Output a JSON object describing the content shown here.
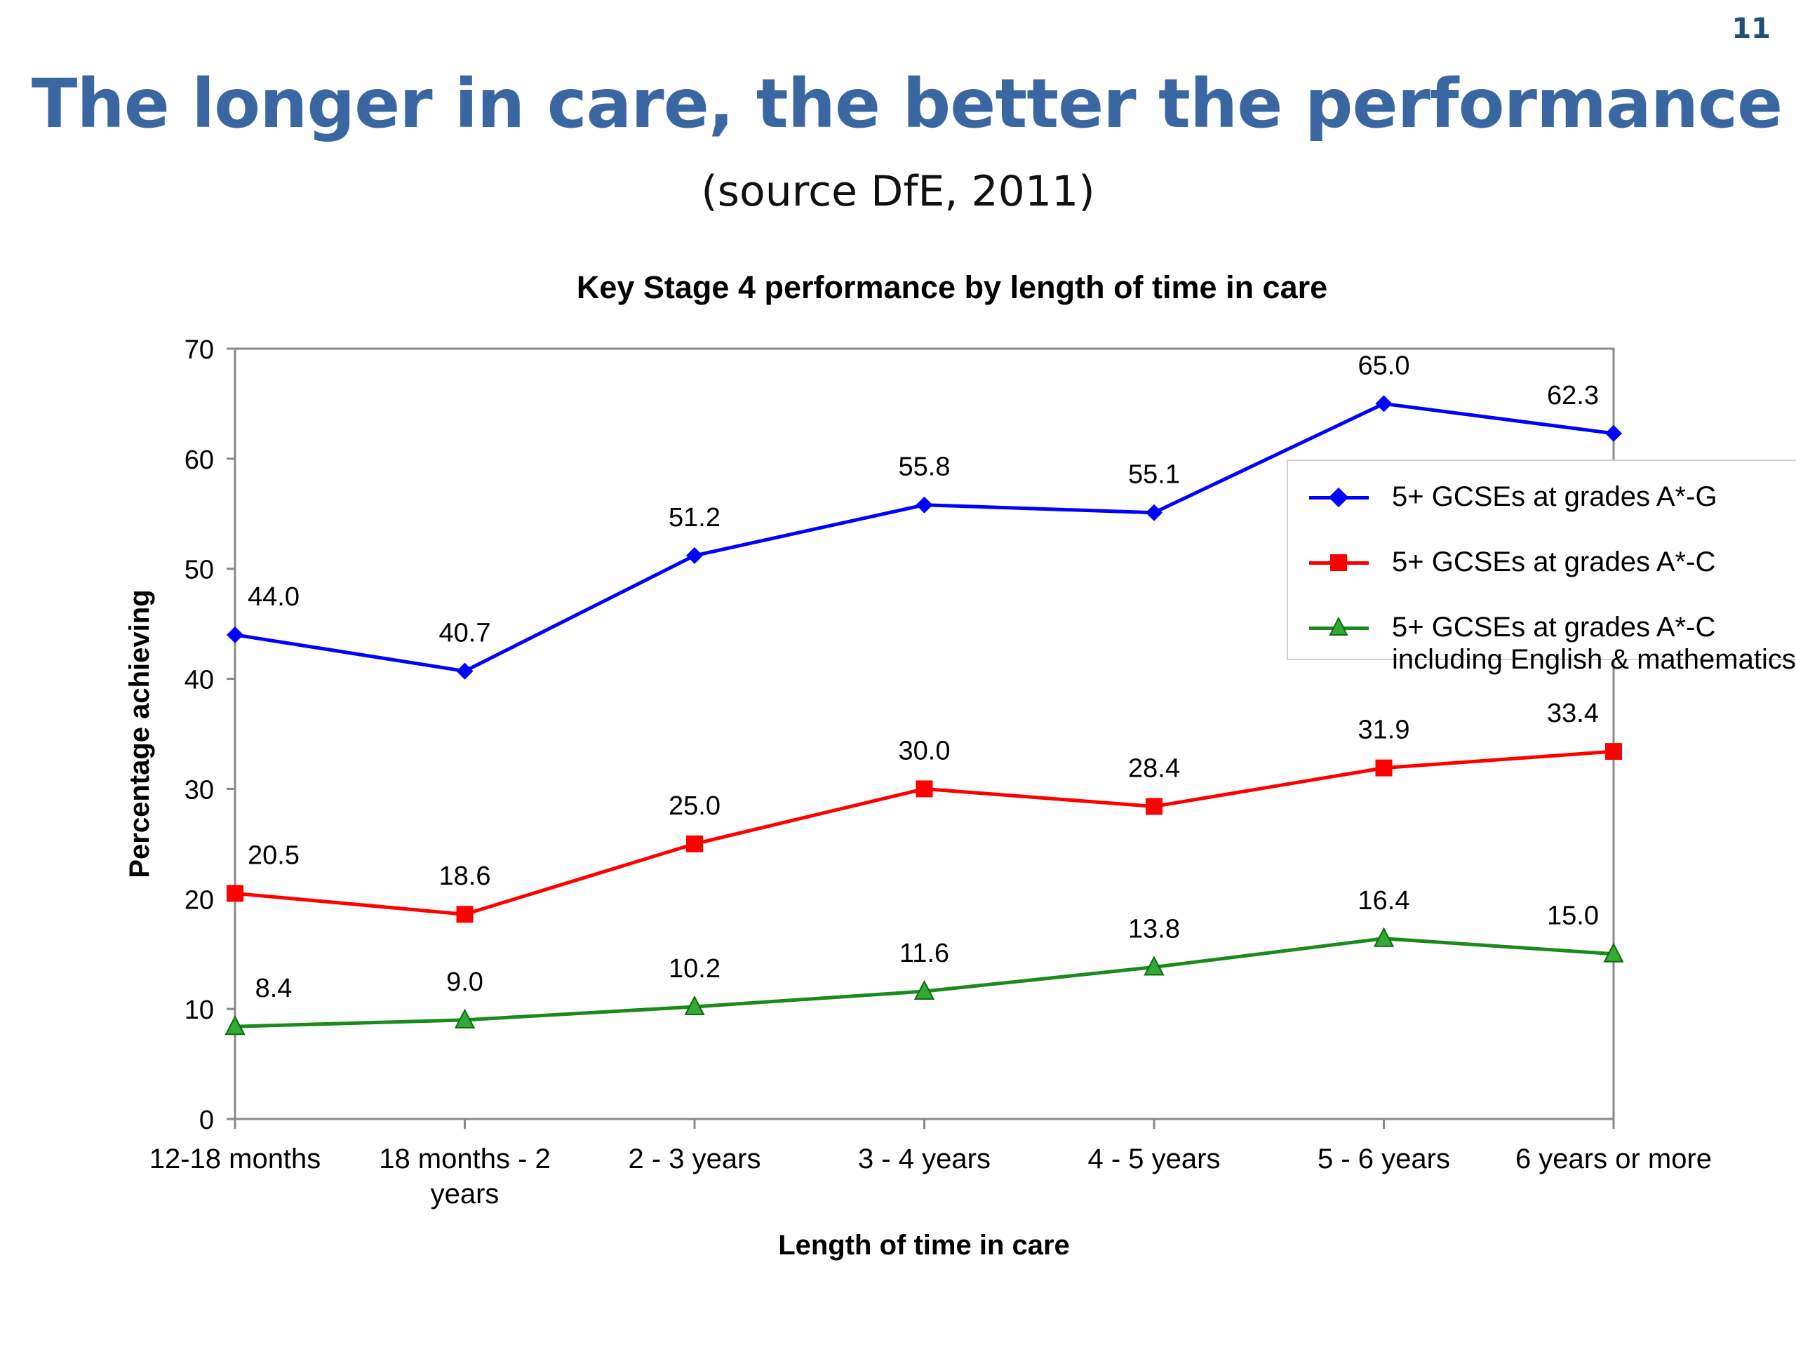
{
  "slide": {
    "number": "11",
    "title": "The longer in care, the better the performance",
    "subtitle": "(source DfE, 2011)"
  },
  "chart_data": {
    "type": "line",
    "title": "Key Stage 4 performance by length of time in care",
    "xlabel": "Length of time in care",
    "ylabel": "Percentage achieving",
    "ylim": [
      0,
      70
    ],
    "yticks": [
      0,
      10,
      20,
      30,
      40,
      50,
      60,
      70
    ],
    "grid": false,
    "legend_position": "right",
    "categories": [
      "12-18 months",
      "18 months - 2 years",
      "2 - 3 years",
      "3 - 4 years",
      "4 - 5 years",
      "5 - 6 years",
      "6 years or more"
    ],
    "series": [
      {
        "name": "5+ GCSEs at grades A*-G",
        "color": "#0000ff",
        "marker": "diamond",
        "values": [
          44.0,
          40.7,
          51.2,
          55.8,
          55.1,
          65.0,
          62.3
        ],
        "labels": [
          "44.0",
          "40.7",
          "51.2",
          "55.8",
          "55.1",
          "65.0",
          "62.3"
        ]
      },
      {
        "name": "5+ GCSEs at grades A*-C",
        "color": "#ff0000",
        "marker": "square",
        "values": [
          20.5,
          18.6,
          25.0,
          30.0,
          28.4,
          31.9,
          33.4
        ],
        "labels": [
          "20.5",
          "18.6",
          "25.0",
          "30.0",
          "28.4",
          "31.9",
          "33.4"
        ]
      },
      {
        "name": "5+ GCSEs at grades A*-C including English & mathematics",
        "name_lines": [
          "5+ GCSEs at grades A*-C",
          "including English & mathematics"
        ],
        "color": "#1a8a1a",
        "marker": "triangle",
        "values": [
          8.4,
          9.0,
          10.2,
          11.6,
          13.8,
          16.4,
          15.0
        ],
        "labels": [
          "8.4",
          "9.0",
          "10.2",
          "11.6",
          "13.8",
          "16.4",
          "15.0"
        ]
      }
    ]
  }
}
